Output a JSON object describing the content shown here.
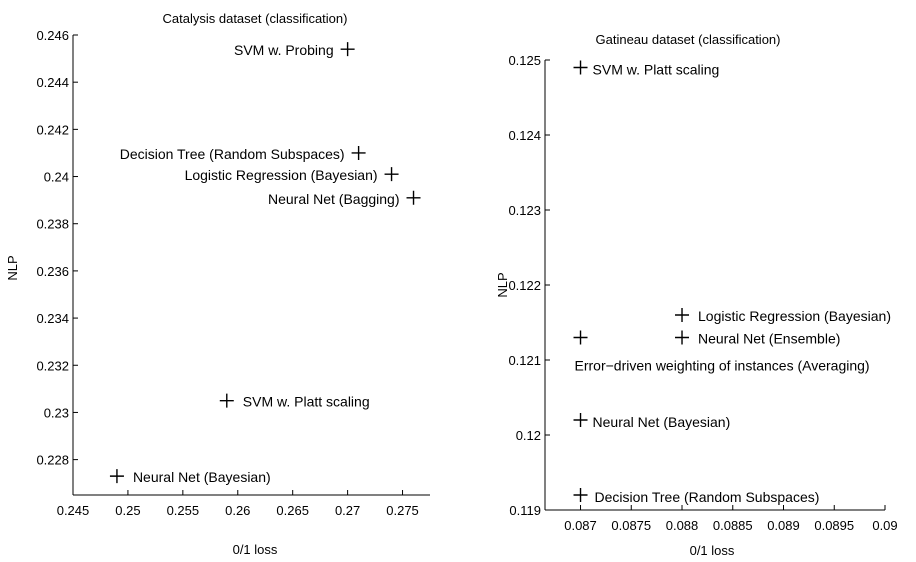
{
  "chart_data": [
    {
      "type": "scatter",
      "title": "Catalysis dataset (classification)",
      "xlabel": "0/1 loss",
      "ylabel": "NLP",
      "xlim": [
        0.245,
        0.2775
      ],
      "ylim": [
        0.2265,
        0.246
      ],
      "xticks": [
        "0.245",
        "0.25",
        "0.255",
        "0.26",
        "0.265",
        "0.27",
        "0.275"
      ],
      "yticks": [
        "0.228",
        "0.23",
        "0.232",
        "0.234",
        "0.236",
        "0.238",
        "0.24",
        "0.242",
        "0.244",
        "0.246"
      ],
      "grid": false,
      "points": [
        {
          "label": "SVM w. Probing",
          "x": 0.27,
          "y": 0.2454
        },
        {
          "label": "Decision Tree (Random Subspaces)",
          "x": 0.271,
          "y": 0.241
        },
        {
          "label": "Logistic Regression (Bayesian)",
          "x": 0.274,
          "y": 0.2401
        },
        {
          "label": "Neural Net (Bagging)",
          "x": 0.276,
          "y": 0.2391
        },
        {
          "label": "SVM w. Platt scaling",
          "x": 0.259,
          "y": 0.2305
        },
        {
          "label": "Neural Net (Bayesian)",
          "x": 0.249,
          "y": 0.2273
        }
      ]
    },
    {
      "type": "scatter",
      "title": "Gatineau dataset (classification)",
      "xlabel": "0/1 loss",
      "ylabel": "NLP",
      "xlim": [
        0.08665,
        0.09
      ],
      "ylim": [
        0.119,
        0.125
      ],
      "xticks": [
        "0.087",
        "0.0875",
        "0.088",
        "0.0885",
        "0.089",
        "0.0895",
        "0.09"
      ],
      "yticks": [
        "0.119",
        "0.12",
        "0.121",
        "0.122",
        "0.123",
        "0.124",
        "0.125"
      ],
      "grid": false,
      "points": [
        {
          "label": "SVM w. Platt scaling",
          "x": 0.087,
          "y": 0.1249
        },
        {
          "label": "Logistic Regression (Bayesian)",
          "x": 0.088,
          "y": 0.1216
        },
        {
          "label": "Neural Net (Ensemble)",
          "x": 0.088,
          "y": 0.1213
        },
        {
          "label": "Error−driven weighting of instances (Averaging)",
          "x": 0.087,
          "y": 0.1213
        },
        {
          "label": "Neural Net (Bayesian)",
          "x": 0.087,
          "y": 0.1202
        },
        {
          "label": "Decision Tree (Random Subspaces)",
          "x": 0.087,
          "y": 0.1192
        }
      ]
    }
  ]
}
